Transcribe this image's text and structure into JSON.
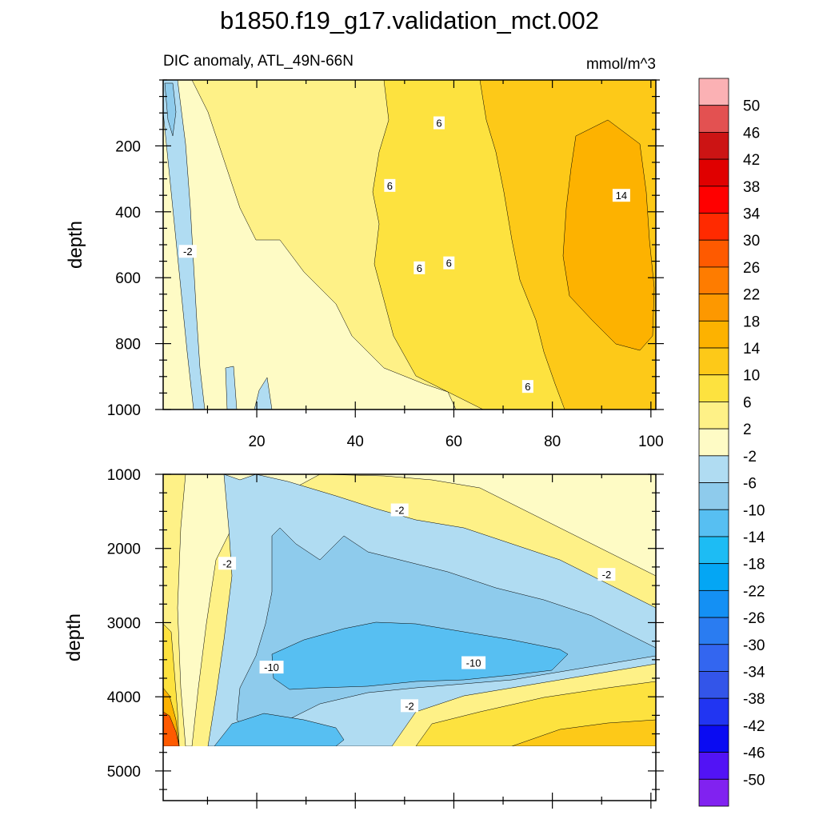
{
  "chart_data": {
    "type": "heatmap",
    "title": "b1850.f19_g17.validation_mct.002",
    "subtitle_left": "DIC anomaly, ATL_49N-66N",
    "subtitle_right": "mmol/m^3",
    "colorbar": {
      "levels": [
        "50",
        "46",
        "42",
        "38",
        "34",
        "30",
        "26",
        "22",
        "18",
        "14",
        "10",
        "6",
        "2",
        "-2",
        "-6",
        "-10",
        "-14",
        "-18",
        "-22",
        "-26",
        "-30",
        "-34",
        "-38",
        "-42",
        "-46",
        "-50"
      ],
      "colors": [
        "#fbb1b4",
        "#e35151",
        "#cc1414",
        "#e00000",
        "#ff0000",
        "#ff2a00",
        "#fe5a00",
        "#fe7c00",
        "#fd9800",
        "#fdb200",
        "#fdc918",
        "#fde23f",
        "#fef187",
        "#fefbc5",
        "#b0dcf2",
        "#8ecbec",
        "#57bff2",
        "#1dbcf4",
        "#04a6f4",
        "#1490f4",
        "#2a7cf1",
        "#3366f0",
        "#3355e9",
        "#2135f2",
        "#0a0bf2",
        "#5213f5",
        "#8122f0"
      ]
    },
    "panels": [
      {
        "name": "upper",
        "xlim": [
          1,
          101
        ],
        "xticks": [
          20,
          40,
          60,
          80,
          100
        ],
        "xtick_labels": [
          "20",
          "40",
          "60",
          "80",
          "100"
        ],
        "ylim": [
          0,
          1000
        ],
        "yticks": [
          200,
          400,
          600,
          800,
          1000
        ],
        "ytick_labels": [
          "200",
          "400",
          "600",
          "800",
          "1000"
        ],
        "ylabel": "depth",
        "contour_labels": [
          {
            "text": "6",
            "x": 57,
            "y": 130
          },
          {
            "text": "6",
            "x": 47,
            "y": 320
          },
          {
            "text": "14",
            "x": 94,
            "y": 350
          },
          {
            "text": "-2",
            "x": 6,
            "y": 520
          },
          {
            "text": "6",
            "x": 53,
            "y": 570
          },
          {
            "text": "6",
            "x": 59,
            "y": 555
          },
          {
            "text": "6",
            "x": 75,
            "y": 930
          }
        ]
      },
      {
        "name": "lower",
        "xlim": [
          1,
          101
        ],
        "xticks": [
          20,
          40,
          60,
          80,
          100
        ],
        "ylim": [
          1000,
          5400
        ],
        "yticks": [
          1000,
          2000,
          3000,
          4000,
          5000
        ],
        "ytick_labels": [
          "1000",
          "2000",
          "3000",
          "4000",
          "5000"
        ],
        "ylabel": "depth",
        "contour_labels": [
          {
            "text": "-2",
            "x": 49,
            "y": 1480
          },
          {
            "text": "-2",
            "x": 14,
            "y": 2200
          },
          {
            "text": "-2",
            "x": 91,
            "y": 2350
          },
          {
            "text": "-10",
            "x": 23,
            "y": 3600
          },
          {
            "text": "-10",
            "x": 64,
            "y": 3540
          },
          {
            "text": "-2",
            "x": 51,
            "y": 4120
          }
        ]
      }
    ]
  }
}
